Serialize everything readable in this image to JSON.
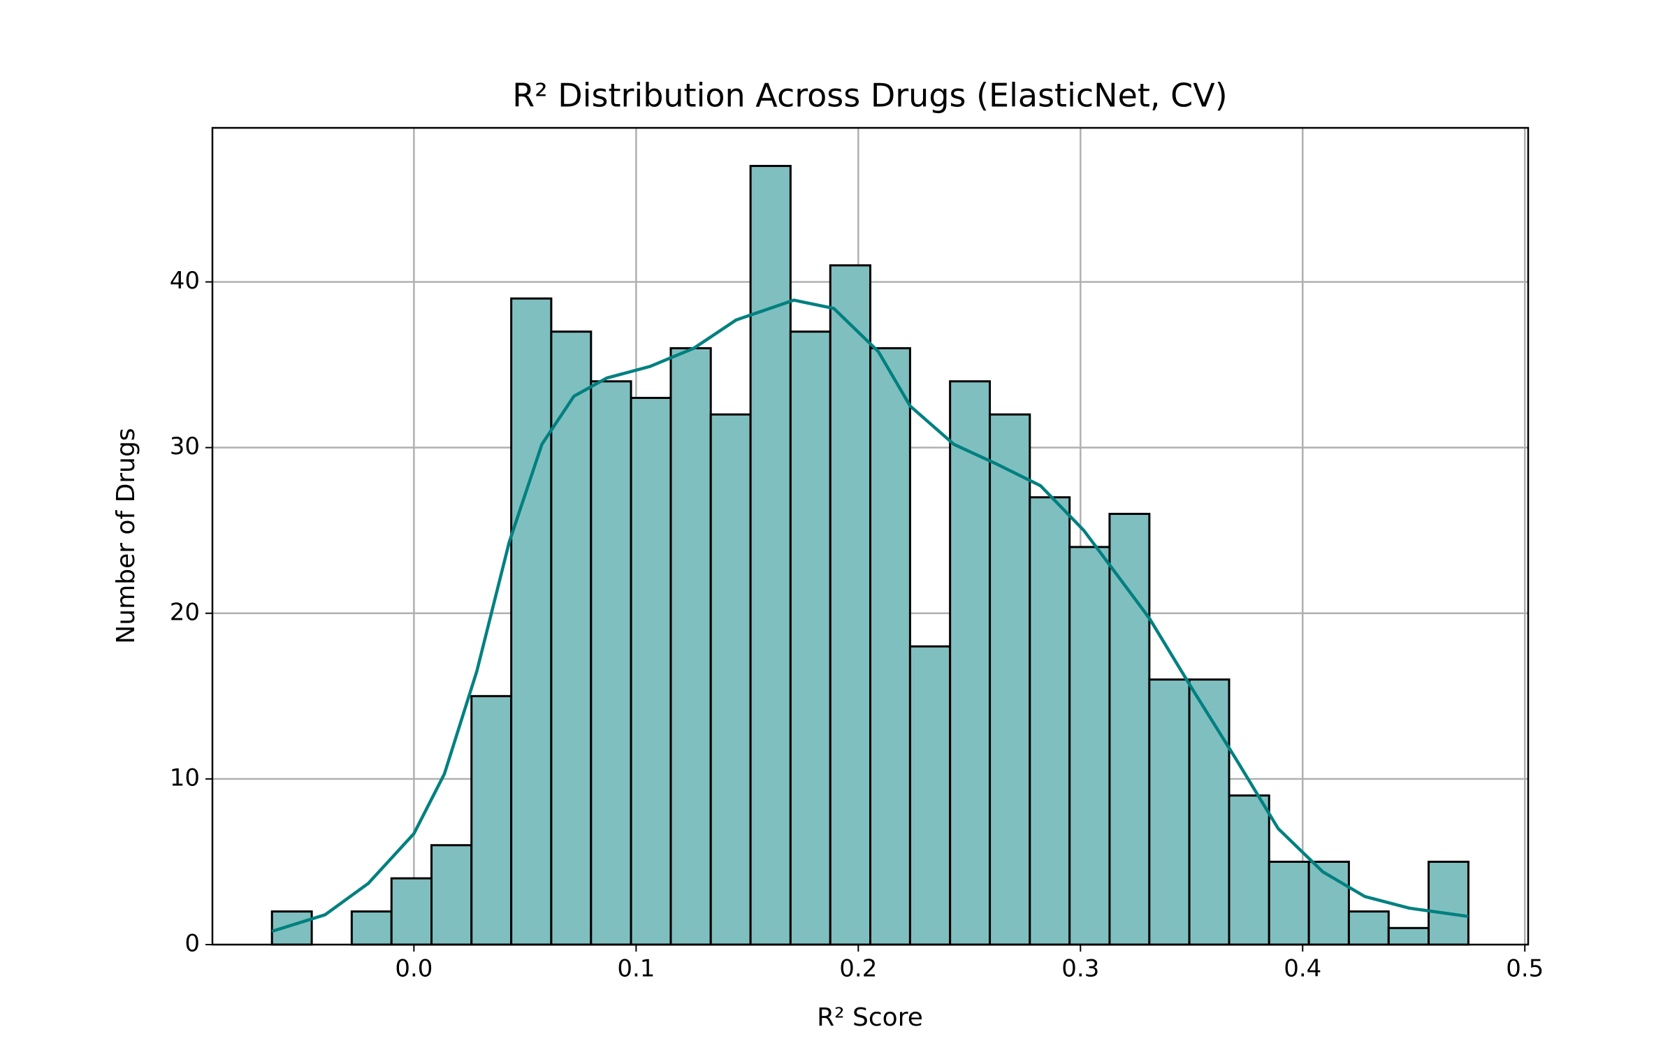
{
  "chart_data": {
    "type": "histogram",
    "title": "R² Distribution Across Drugs (ElasticNet, CV)",
    "xlabel": "R² Score",
    "ylabel": "Number of Drugs",
    "bins": [
      -0.0639,
      -0.046,
      -0.028,
      -0.0101,
      0.0079,
      0.0259,
      0.0438,
      0.0618,
      0.0797,
      0.0977,
      0.1156,
      0.1336,
      0.1515,
      0.1695,
      0.1874,
      0.2054,
      0.2233,
      0.2413,
      0.2592,
      0.2772,
      0.2951,
      0.3131,
      0.331,
      0.349,
      0.3669,
      0.3849,
      0.4028,
      0.4208,
      0.4387,
      0.4567,
      0.4746
    ],
    "counts": [
      2,
      0,
      2,
      4,
      6,
      15,
      39,
      37,
      34,
      33,
      36,
      32,
      47,
      37,
      41,
      36,
      18,
      34,
      32,
      27,
      24,
      26,
      16,
      16,
      9,
      5,
      5,
      2,
      1,
      5
    ],
    "color": "#80bfbf",
    "edgecolor": "#000000",
    "kde": {
      "color": "#008080",
      "x": [
        -0.0639,
        -0.04,
        -0.0205,
        0,
        0.0137,
        0.0283,
        0.0429,
        0.0576,
        0.072,
        0.0868,
        0.1063,
        0.126,
        0.145,
        0.171,
        0.189,
        0.209,
        0.2234,
        0.243,
        0.2624,
        0.282,
        0.3015,
        0.316,
        0.331,
        0.35,
        0.37,
        0.389,
        0.409,
        0.428,
        0.448,
        0.4746
      ],
      "values": [
        0.8,
        1.8,
        3.7,
        6.7,
        10.3,
        16.5,
        24.3,
        30.2,
        33.1,
        34.2,
        34.9,
        36,
        37.7,
        38.9,
        38.4,
        35.8,
        32.5,
        30.2,
        29,
        27.7,
        25,
        22.4,
        19.7,
        15.5,
        11.2,
        7,
        4.4,
        2.9,
        2.2,
        1.7
      ]
    },
    "xlim": [
      -0.0907,
      0.5015
    ],
    "ylim": [
      0,
      49.3
    ],
    "xticks": [
      {
        "value": 0,
        "label": "0.0"
      },
      0.1,
      0.2,
      0.3,
      0.4,
      0.5
    ],
    "yticks": [
      0,
      10,
      20,
      30,
      40
    ],
    "grid": true
  }
}
